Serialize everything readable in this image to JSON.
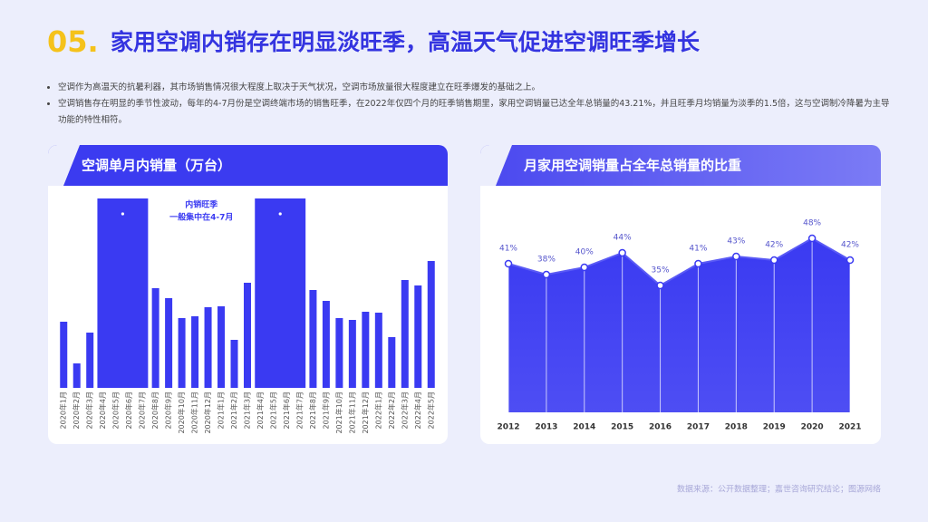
{
  "header": {
    "number": "05.",
    "title": "家用空调内销存在明显淡旺季，高温天气促进空调旺季增长"
  },
  "bullets": [
    "空调作为高温天的抗暑利器，其市场销售情况很大程度上取决于天气状况，空调市场放量很大程度建立在旺季爆发的基础之上。",
    "空调销售存在明显的季节性波动，每年的4-7月份是空调终端市场的销售旺季，在2022年仅四个月的旺季销售期里，家用空调销量已达全年总销量的43.21%，并且旺季月均销量为淡季的1.5倍，这与空调制冷降暑为主导功能的特性相符。"
  ],
  "source": "数据来源：公开数据整理；嘉世咨询研究结论；图源网络",
  "chart_data": [
    {
      "type": "bar",
      "title": "空调单月内销量（万台）",
      "color": "#3a3af2",
      "categories": [
        "2020年1月",
        "2020年2月",
        "2020年3月",
        "2020年4月",
        "2020年5月",
        "2020年6月",
        "2020年7月",
        "2020年8月",
        "2020年9月",
        "2020年10月",
        "2020年11月",
        "2020年12月",
        "2021年1月",
        "2021年2月",
        "2021年3月",
        "2021年4月",
        "2021年5月",
        "2021年6月",
        "2021年7月",
        "2021年8月",
        "2021年9月",
        "2021年10月",
        "2021年11月",
        "2021年12月",
        "2022年1月",
        "2022年2月",
        "2022年3月",
        "2022年4月",
        "2022年5月"
      ],
      "values": [
        73,
        27,
        61,
        null,
        null,
        null,
        null,
        110,
        99,
        77,
        79,
        89,
        90,
        53,
        116,
        null,
        null,
        null,
        null,
        108,
        96,
        77,
        75,
        84,
        83,
        56,
        119,
        113,
        140
      ],
      "ylim": [
        0,
        210
      ],
      "annotation": [
        "内销旺季",
        "一般集中在4-7月"
      ]
    },
    {
      "type": "area",
      "title": "月家用空调销量占全年总销量的比重",
      "color": "#3a3af2",
      "categories": [
        "2012",
        "2013",
        "2014",
        "2015",
        "2016",
        "2017",
        "2018",
        "2019",
        "2020",
        "2021"
      ],
      "values": [
        41,
        38,
        40,
        44,
        35,
        41,
        43,
        42,
        48,
        42
      ],
      "value_labels": [
        "41%",
        "38%",
        "40%",
        "44%",
        "35%",
        "41%",
        "43%",
        "42%",
        "48%",
        "42%"
      ],
      "ylim": [
        0,
        55
      ]
    }
  ]
}
